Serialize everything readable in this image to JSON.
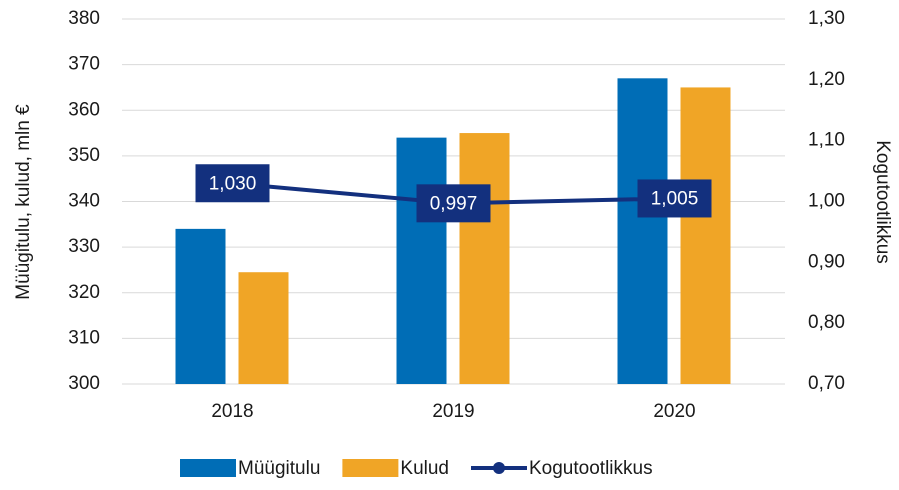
{
  "chart_data": {
    "type": "bar",
    "categories": [
      "2018",
      "2019",
      "2020"
    ],
    "series": [
      {
        "name": "Müügitulu",
        "color": "#006db6",
        "values": [
          334,
          354,
          367
        ]
      },
      {
        "name": "Kulud",
        "color": "#f0a526",
        "values": [
          324.5,
          355,
          365
        ]
      },
      {
        "name": "Kogutootlikkus",
        "color": "#13307e",
        "type": "line",
        "axis": "y2",
        "values": [
          1.03,
          0.997,
          1.005
        ],
        "value_labels": [
          "1,030",
          "0,997",
          "1,005"
        ]
      }
    ],
    "ylabel": "Müügitulu, kulud, mln €",
    "y2label": "Kogutootlikkus",
    "ylim": [
      300,
      380
    ],
    "yticks": [
      300,
      310,
      320,
      330,
      340,
      350,
      360,
      370,
      380
    ],
    "y2lim": [
      0.7,
      1.3
    ],
    "y2ticks": [
      {
        "value": 0.7,
        "label": "0,70"
      },
      {
        "value": 0.8,
        "label": "0,80"
      },
      {
        "value": 0.9,
        "label": "0,90"
      },
      {
        "value": 1.0,
        "label": "1,00"
      },
      {
        "value": 1.1,
        "label": "1,10"
      },
      {
        "value": 1.2,
        "label": "1,20"
      },
      {
        "value": 1.3,
        "label": "1,30"
      }
    ],
    "grid": true,
    "legend": "bottom"
  }
}
